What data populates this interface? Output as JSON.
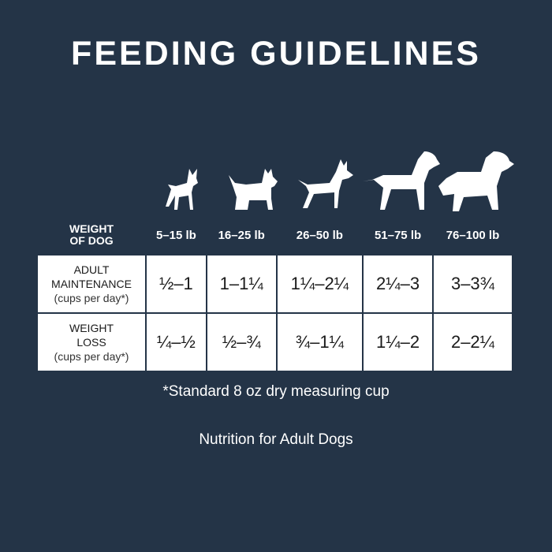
{
  "title": "FEEDING GUIDELINES",
  "dog_icons": [
    "chihuahua-icon",
    "terrier-icon",
    "pinscher-icon",
    "retriever-icon",
    "bernese-icon"
  ],
  "table": {
    "header": {
      "label_line1": "WEIGHT",
      "label_line2": "OF DOG",
      "columns": [
        "5–15 lb",
        "16–25 lb",
        "26–50 lb",
        "51–75 lb",
        "76–100 lb"
      ]
    },
    "rows": [
      {
        "label_line1": "ADULT",
        "label_line2": "MAINTENANCE",
        "sub": "(cups per day*)",
        "values": [
          "½–1",
          "1–1¼",
          "1¼–2¼",
          "2¼–3",
          "3–3¾"
        ]
      },
      {
        "label_line1": "WEIGHT",
        "label_line2": "LOSS",
        "sub": "(cups per day*)",
        "values": [
          "¼–½",
          "½–¾",
          "¾–1¼",
          "1¼–2",
          "2–2¼"
        ]
      }
    ]
  },
  "note": "*Standard 8 oz dry measuring cup",
  "footer": "Nutrition for Adult Dogs",
  "colors": {
    "background": "#243447",
    "table_cell": "#ffffff"
  }
}
